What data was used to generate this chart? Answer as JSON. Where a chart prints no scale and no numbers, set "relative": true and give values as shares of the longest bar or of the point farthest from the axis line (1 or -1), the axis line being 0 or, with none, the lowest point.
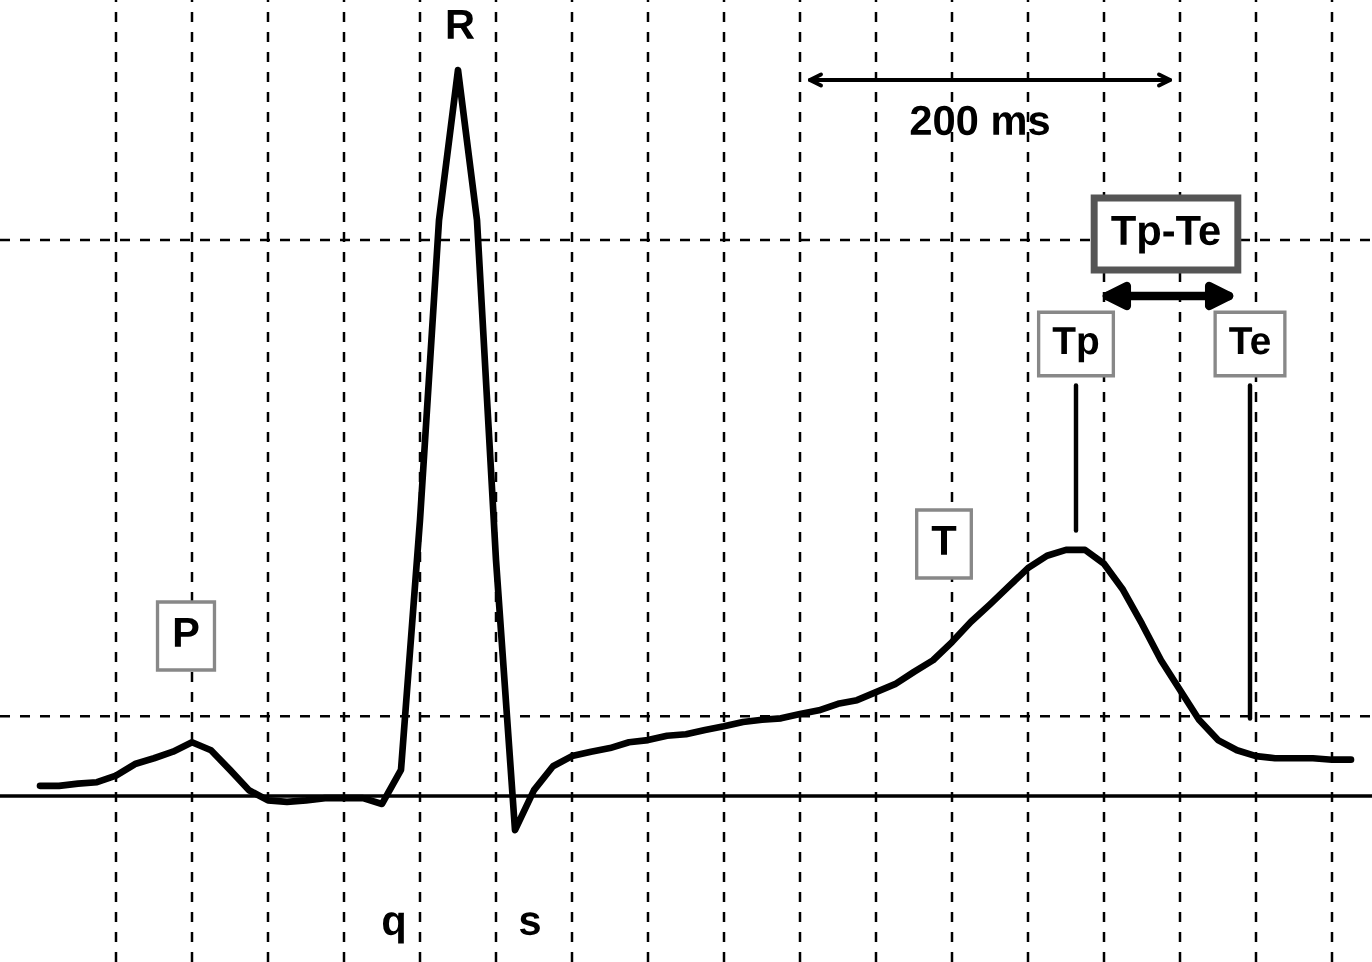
{
  "chart_data": {
    "type": "line",
    "relative": true,
    "grid": "x",
    "marker": "none",
    "line_style": "solid",
    "categories": [
      null,
      null,
      null,
      null,
      null,
      null,
      null,
      null,
      null,
      null,
      null,
      null,
      null,
      null,
      null,
      null,
      null,
      null,
      null,
      null,
      null,
      null,
      null,
      null,
      null,
      null,
      null,
      null,
      null,
      null,
      null,
      null,
      null,
      null,
      null,
      null,
      null,
      null,
      null,
      null,
      null,
      null,
      null,
      null,
      null,
      null,
      null,
      null,
      null,
      null,
      null,
      null,
      null,
      null,
      null,
      null,
      null,
      null,
      null,
      null,
      null,
      null,
      null,
      null,
      null,
      null,
      null,
      null,
      null,
      null
    ],
    "series": [
      {
        "color": "#000000",
        "values": [
          0.014,
          0.014,
          0.017,
          0.019,
          0.028,
          0.044,
          0.052,
          0.061,
          0.074,
          0.063,
          0.036,
          0.008,
          -0.006,
          -0.008,
          -0.006,
          -0.003,
          -0.003,
          -0.003,
          -0.011,
          0.036,
          0.38,
          0.793,
          1,
          0.793,
          0.325,
          -0.047,
          0.008,
          0.041,
          0.055,
          0.061,
          0.066,
          0.074,
          0.077,
          0.083,
          0.085,
          0.091,
          0.096,
          0.102,
          0.105,
          0.107,
          0.113,
          0.118,
          0.127,
          0.132,
          0.143,
          0.154,
          0.171,
          0.187,
          0.212,
          0.24,
          0.264,
          0.289,
          0.314,
          0.331,
          0.339,
          0.339,
          0.32,
          0.284,
          0.237,
          0.187,
          0.146,
          0.105,
          0.077,
          0.063,
          0.055,
          0.052,
          0.052,
          0.052,
          0.05,
          0.05
        ]
      }
    ],
    "ref_lines": [
      {
        "axis": "y",
        "value": 0.766,
        "line_style": "dashed",
        "color": "#000000"
      },
      {
        "axis": "y",
        "value": 0.11,
        "line_style": "dashed",
        "color": "#000000"
      }
    ],
    "annotations": [
      "P",
      "R",
      "q",
      "s",
      "T",
      "200 ms",
      "Tp-Te",
      "Tp",
      "Te"
    ]
  }
}
